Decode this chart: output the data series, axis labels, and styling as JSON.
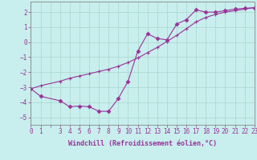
{
  "x_jagged": [
    0,
    1,
    3,
    4,
    5,
    6,
    7,
    8,
    9,
    10,
    11,
    12,
    13,
    14,
    15,
    16,
    17,
    18,
    19,
    20,
    21,
    22,
    23
  ],
  "y_jagged": [
    -3.1,
    -3.6,
    -3.9,
    -4.3,
    -4.25,
    -4.3,
    -4.6,
    -4.6,
    -3.75,
    -2.6,
    -0.6,
    0.55,
    0.25,
    0.15,
    1.2,
    1.5,
    2.15,
    2.0,
    2.0,
    2.1,
    2.2,
    2.25,
    2.3
  ],
  "x_smooth": [
    0,
    1,
    3,
    4,
    5,
    6,
    7,
    8,
    9,
    10,
    11,
    12,
    13,
    14,
    15,
    16,
    17,
    18,
    19,
    20,
    21,
    22,
    23
  ],
  "y_smooth": [
    -3.1,
    -2.9,
    -2.6,
    -2.4,
    -2.25,
    -2.1,
    -1.95,
    -1.8,
    -1.6,
    -1.35,
    -1.05,
    -0.7,
    -0.35,
    0.05,
    0.45,
    0.9,
    1.35,
    1.65,
    1.85,
    2.0,
    2.1,
    2.2,
    2.3
  ],
  "color": "#993399",
  "background_color": "#c8eeed",
  "grid_color": "#a8d8cc",
  "xlim": [
    0,
    23
  ],
  "ylim": [
    -5.5,
    2.7
  ],
  "yticks": [
    -5,
    -4,
    -3,
    -2,
    -1,
    0,
    1,
    2
  ],
  "xtick_labels": [
    "0",
    "1",
    "",
    "3",
    "4",
    "5",
    "6",
    "7",
    "8",
    "9",
    "10",
    "11",
    "12",
    "13",
    "14",
    "15",
    "16",
    "17",
    "18",
    "19",
    "20",
    "21",
    "22",
    "23"
  ],
  "xlabel": "Windchill (Refroidissement éolien,°C)",
  "xlabel_fontsize": 6.0,
  "tick_fontsize": 5.5,
  "linewidth": 0.8,
  "marker_size": 2.5
}
